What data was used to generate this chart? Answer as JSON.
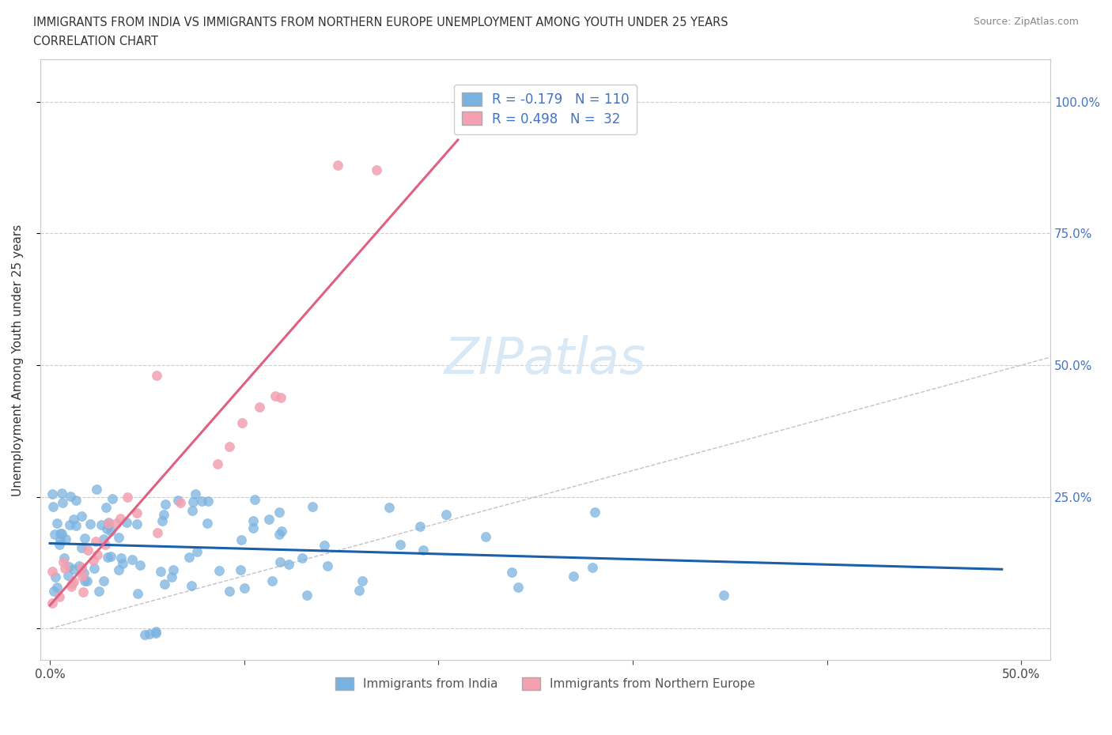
{
  "title_line1": "IMMIGRANTS FROM INDIA VS IMMIGRANTS FROM NORTHERN EUROPE UNEMPLOYMENT AMONG YOUTH UNDER 25 YEARS",
  "title_line2": "CORRELATION CHART",
  "source": "Source: ZipAtlas.com",
  "ylabel": "Unemployment Among Youth under 25 years",
  "R_india": -0.179,
  "N_india": 110,
  "R_europe": 0.498,
  "N_europe": 32,
  "color_india": "#7ab3e0",
  "color_europe": "#f4a0b0",
  "trendline_india": "#1a5fa8",
  "trendline_europe": "#e06080",
  "diagonal_color": "#c8bfc8",
  "legend_text_color": "#4472c4",
  "right_axis_color": "#4472c4",
  "watermark_color": "#d8e8f5"
}
